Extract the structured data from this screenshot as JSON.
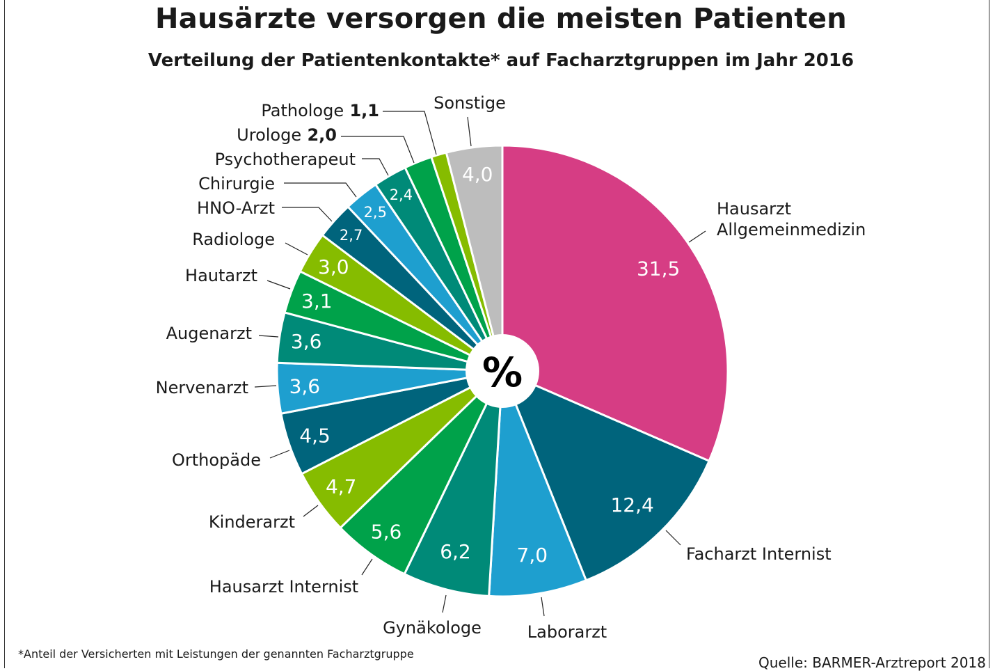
{
  "chart_data": {
    "type": "pie",
    "title": "Hausärzte versorgen die meisten Patienten",
    "subtitle": "Verteilung der Patientenkontakte* auf Facharztgruppen im Jahr 2016",
    "center_label": "%",
    "donut_hole": true,
    "start": "top, clockwise",
    "slices": [
      {
        "label": "Hausarzt Allgemeinmedizin",
        "value": 31.5,
        "display": "31,5",
        "color": "#d63d84"
      },
      {
        "label": "Facharzt Internist",
        "value": 12.4,
        "display": "12,4",
        "color": "#00647c"
      },
      {
        "label": "Laborarzt",
        "value": 7.0,
        "display": "7,0",
        "color": "#1e9fcf"
      },
      {
        "label": "Gynäkologe",
        "value": 6.2,
        "display": "6,2",
        "color": "#008a78"
      },
      {
        "label": "Hausarzt Internist",
        "value": 5.6,
        "display": "5,6",
        "color": "#00a24a"
      },
      {
        "label": "Kinderarzt",
        "value": 4.7,
        "display": "4,7",
        "color": "#86bc00"
      },
      {
        "label": "Orthopäde",
        "value": 4.5,
        "display": "4,5",
        "color": "#00647c"
      },
      {
        "label": "Nervenarzt",
        "value": 3.6,
        "display": "3,6",
        "color": "#1e9fcf"
      },
      {
        "label": "Augenarzt",
        "value": 3.6,
        "display": "3,6",
        "color": "#008a78"
      },
      {
        "label": "Hautarzt",
        "value": 3.1,
        "display": "3,1",
        "color": "#00a24a"
      },
      {
        "label": "Radiologe",
        "value": 3.0,
        "display": "3,0",
        "color": "#86bc00"
      },
      {
        "label": "HNO-Arzt",
        "value": 2.7,
        "display": "2,7",
        "color": "#00647c"
      },
      {
        "label": "Chirurgie",
        "value": 2.5,
        "display": "2,5",
        "color": "#1e9fcf"
      },
      {
        "label": "Psychotherapeut",
        "value": 2.4,
        "display": "2,4",
        "color": "#008a78"
      },
      {
        "label": "Urologe",
        "value": 2.0,
        "display": "2,0",
        "color": "#00a24a",
        "value_outside": true
      },
      {
        "label": "Pathologe",
        "value": 1.1,
        "display": "1,1",
        "color": "#86bc00",
        "value_outside": true
      },
      {
        "label": "Sonstige",
        "value": 4.0,
        "display": "4,0",
        "color": "#bdbdbd"
      }
    ],
    "footnote": "*Anteil der Versicherten mit Leistungen der genannten Facharztgruppe",
    "source": "Quelle: BARMER-Arztreport 2018"
  }
}
